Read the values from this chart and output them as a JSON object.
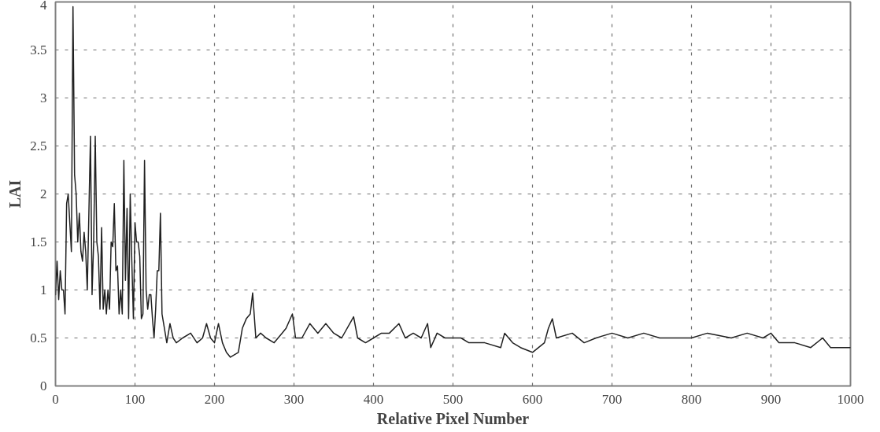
{
  "chart_data": {
    "type": "line",
    "xlabel": "Relative Pixel Number",
    "ylabel": "LAI",
    "x": [
      0,
      2,
      4,
      6,
      8,
      10,
      12,
      14,
      16,
      18,
      20,
      22,
      24,
      26,
      28,
      30,
      32,
      34,
      36,
      38,
      40,
      42,
      44,
      46,
      48,
      50,
      52,
      54,
      56,
      58,
      60,
      62,
      64,
      66,
      68,
      70,
      72,
      74,
      76,
      78,
      80,
      82,
      84,
      86,
      88,
      90,
      92,
      94,
      96,
      98,
      100,
      102,
      104,
      106,
      108,
      110,
      112,
      114,
      116,
      118,
      120,
      122,
      124,
      126,
      128,
      130,
      132,
      134,
      136,
      140,
      144,
      148,
      152,
      160,
      170,
      178,
      185,
      190,
      195,
      200,
      205,
      210,
      215,
      220,
      230,
      235,
      240,
      245,
      248,
      252,
      258,
      265,
      275,
      285,
      290,
      298,
      302,
      310,
      320,
      330,
      340,
      350,
      360,
      375,
      380,
      390,
      400,
      410,
      420,
      432,
      440,
      450,
      460,
      468,
      472,
      480,
      490,
      500,
      510,
      520,
      540,
      560,
      565,
      575,
      585,
      600,
      615,
      620,
      625,
      630,
      650,
      665,
      680,
      700,
      720,
      740,
      760,
      780,
      800,
      820,
      850,
      870,
      890,
      900,
      910,
      930,
      950,
      965,
      975,
      1000
    ],
    "series": [
      {
        "color": "#202020",
        "values": [
          0.95,
          1.3,
          0.9,
          1.2,
          1.0,
          1.0,
          0.75,
          1.9,
          2.0,
          1.7,
          1.4,
          3.95,
          2.2,
          2.0,
          1.5,
          1.8,
          1.4,
          1.3,
          1.6,
          1.4,
          1.0,
          1.8,
          2.6,
          0.95,
          1.5,
          2.6,
          1.5,
          1.35,
          0.8,
          1.65,
          0.8,
          1.0,
          0.75,
          1.0,
          0.8,
          1.5,
          1.45,
          1.9,
          1.2,
          1.25,
          0.75,
          1.0,
          0.75,
          2.35,
          1.1,
          1.85,
          0.7,
          2.0,
          1.3,
          0.7,
          1.7,
          1.5,
          1.5,
          1.35,
          0.7,
          0.75,
          2.35,
          1.0,
          0.8,
          0.95,
          0.95,
          0.7,
          0.5,
          0.8,
          1.2,
          1.2,
          1.8,
          0.75,
          0.65,
          0.45,
          0.65,
          0.5,
          0.45,
          0.5,
          0.55,
          0.45,
          0.5,
          0.65,
          0.5,
          0.45,
          0.65,
          0.45,
          0.35,
          0.3,
          0.35,
          0.6,
          0.7,
          0.75,
          0.97,
          0.5,
          0.55,
          0.5,
          0.45,
          0.55,
          0.6,
          0.75,
          0.5,
          0.5,
          0.65,
          0.55,
          0.65,
          0.55,
          0.5,
          0.72,
          0.5,
          0.45,
          0.5,
          0.55,
          0.55,
          0.65,
          0.5,
          0.55,
          0.5,
          0.65,
          0.4,
          0.55,
          0.5,
          0.5,
          0.5,
          0.45,
          0.45,
          0.4,
          0.55,
          0.45,
          0.4,
          0.35,
          0.45,
          0.6,
          0.7,
          0.5,
          0.55,
          0.45,
          0.5,
          0.55,
          0.5,
          0.55,
          0.5,
          0.5,
          0.5,
          0.55,
          0.5,
          0.55,
          0.5,
          0.55,
          0.45,
          0.45,
          0.4,
          0.5,
          0.4,
          0.4
        ]
      }
    ],
    "xlim": [
      0,
      1000
    ],
    "ylim": [
      0,
      4
    ],
    "xticks": [
      0,
      100,
      200,
      300,
      400,
      500,
      600,
      700,
      800,
      900,
      1000
    ],
    "yticks": [
      0,
      0.5,
      1,
      1.5,
      2,
      2.5,
      3,
      3.5,
      4
    ],
    "grid": true,
    "line_style": "solid"
  }
}
